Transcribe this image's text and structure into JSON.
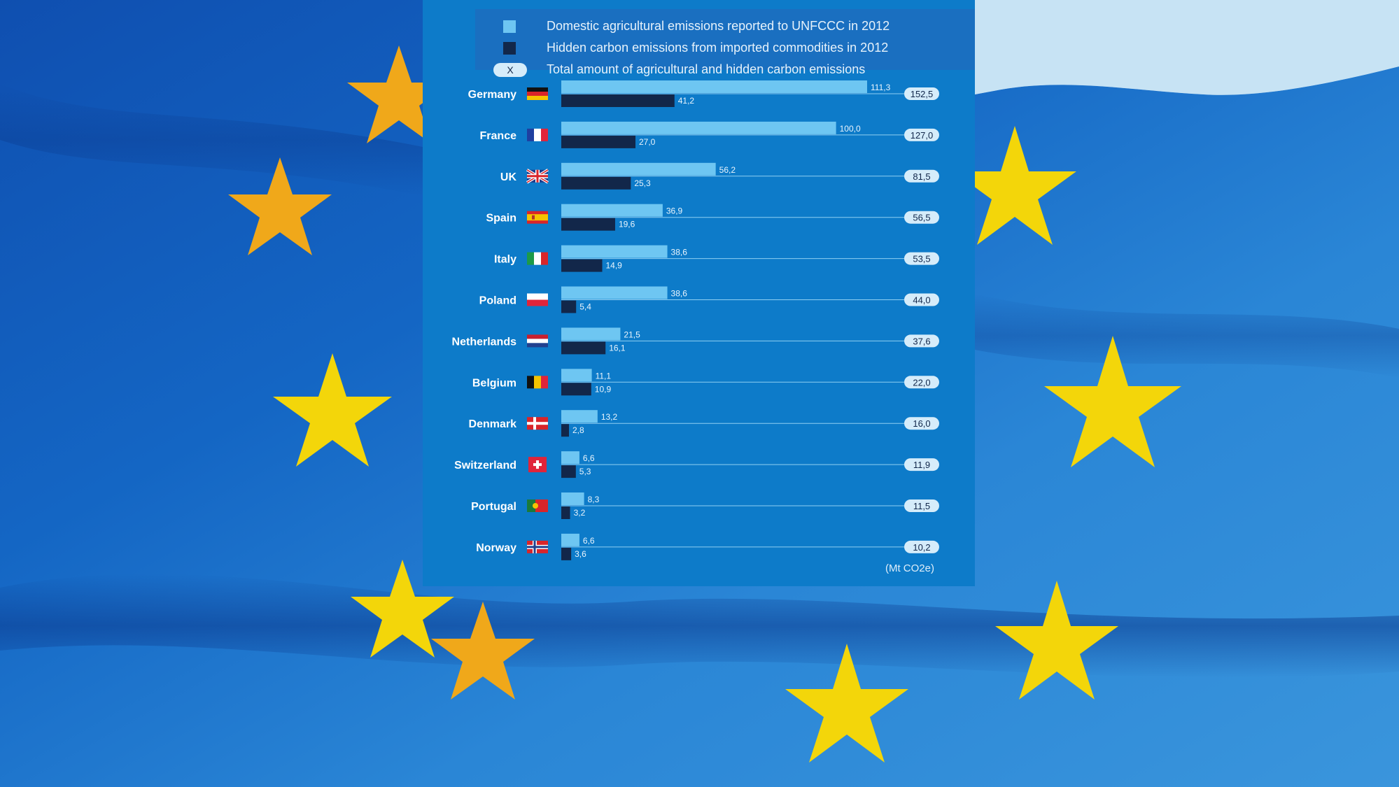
{
  "chart_data": {
    "type": "bar",
    "categories": [
      "Germany",
      "France",
      "UK",
      "Spain",
      "Italy",
      "Poland",
      "Netherlands",
      "Belgium",
      "Denmark",
      "Switzerland",
      "Portugal",
      "Norway"
    ],
    "series": [
      {
        "name": "Domestic agricultural emissions reported to UNFCCC in 2012",
        "color": "#6ec6f2",
        "values": [
          111.3,
          100.0,
          56.2,
          36.9,
          38.6,
          38.6,
          21.5,
          11.1,
          13.2,
          6.6,
          8.3,
          6.6
        ],
        "labels": [
          "111,3",
          "100,0",
          "56,2",
          "36,9",
          "38,6",
          "38,6",
          "21,5",
          "11,1",
          "13,2",
          "6,6",
          "8,3",
          "6,6"
        ]
      },
      {
        "name": "Hidden carbon emissions from imported commodities in 2012",
        "color": "#12274a",
        "values": [
          41.2,
          27.0,
          25.3,
          19.6,
          14.9,
          5.4,
          16.1,
          10.9,
          2.8,
          5.3,
          3.2,
          3.6
        ],
        "labels": [
          "41,2",
          "27,0",
          "25,3",
          "19,6",
          "14,9",
          "5,4",
          "16,1",
          "10,9",
          "2,8",
          "5,3",
          "3,2",
          "3,6"
        ]
      }
    ],
    "totals": {
      "name": "Total amount of agricultural and hidden carbon emissions",
      "marker": "X",
      "values": [
        152.5,
        127.0,
        81.5,
        56.5,
        53.5,
        44.0,
        37.6,
        22.0,
        16.0,
        11.9,
        11.5,
        10.2
      ],
      "labels": [
        "152,5",
        "127,0",
        "81,5",
        "56,5",
        "53,5",
        "44,0",
        "37,6",
        "22,0",
        "16,0",
        "11,9",
        "11,5",
        "10,2"
      ]
    },
    "flags": [
      "germany-flag",
      "france-flag",
      "uk-flag",
      "spain-flag",
      "italy-flag",
      "poland-flag",
      "netherlands-flag",
      "belgium-flag",
      "denmark-flag",
      "switzerland-flag",
      "portugal-flag",
      "norway-flag"
    ],
    "unit": "(Mt CO2e)",
    "xlim": [
      0,
      111.3
    ],
    "legend_position": "top",
    "grid": false
  },
  "colors": {
    "panel": "#0d7bc9",
    "legend_band": "#1a6fc0",
    "light_bar": "#6ec6f2",
    "dark_bar": "#12274a",
    "guide_line": "#8fcff2",
    "total_pill": "#d5ecfa",
    "background": "eu-flag-stars-photo"
  }
}
